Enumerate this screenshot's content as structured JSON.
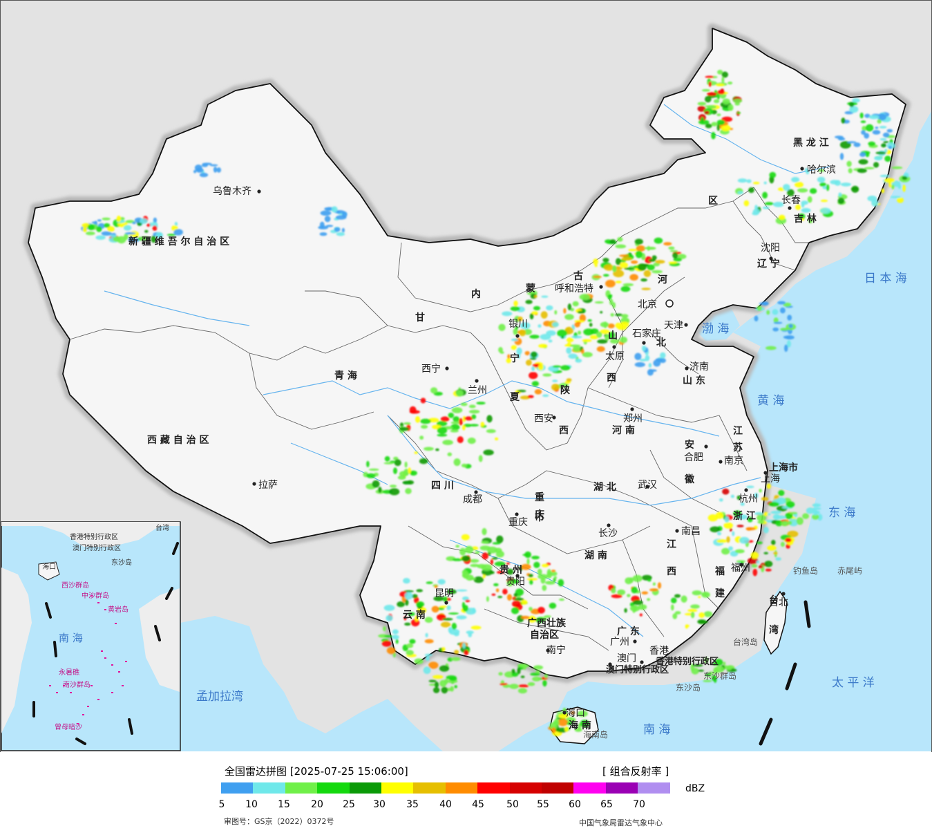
{
  "title_line": "全国雷达拼图 [2025-07-25 15:06:00]",
  "product": "[ 组合反射率 ]",
  "unit": "dBZ",
  "review_no": "审图号：GS京（2022）0372号",
  "agency": "中国气象局雷达气象中心",
  "legend": {
    "colors": [
      "#3f9ff0",
      "#6fe8ea",
      "#70f049",
      "#14d90e",
      "#0a9a07",
      "#ffff00",
      "#e6bf00",
      "#ff8c00",
      "#ff0000",
      "#d60000",
      "#c00000",
      "#ff00f0",
      "#9a00b4",
      "#b08ef0"
    ],
    "ticks": [
      "5",
      "10",
      "15",
      "20",
      "25",
      "30",
      "35",
      "40",
      "45",
      "50",
      "55",
      "60",
      "65",
      "70"
    ]
  },
  "regions": [
    {
      "text": "新 疆 维 吾 尔 自 治 区"
    },
    {
      "text": "西 藏 自 治 区"
    },
    {
      "text": "青  海"
    },
    {
      "text": "甘"
    },
    {
      "text": "内"
    },
    {
      "text": "蒙"
    },
    {
      "text": "古"
    },
    {
      "text": "区"
    },
    {
      "text": "黑 龙 江"
    },
    {
      "text": "吉 林"
    },
    {
      "text": "辽 宁"
    },
    {
      "text": "河"
    },
    {
      "text": "北"
    },
    {
      "text": "山"
    },
    {
      "text": "西"
    },
    {
      "text": "陕"
    },
    {
      "text": "西"
    },
    {
      "text": "宁"
    },
    {
      "text": "夏"
    },
    {
      "text": "河 南"
    },
    {
      "text": "山 东"
    },
    {
      "text": "江"
    },
    {
      "text": "苏"
    },
    {
      "text": "安"
    },
    {
      "text": "徽"
    },
    {
      "text": "上海市"
    },
    {
      "text": "浙 江"
    },
    {
      "text": "四  川"
    },
    {
      "text": "重"
    },
    {
      "text": "庆"
    },
    {
      "text": "市"
    },
    {
      "text": "湖  北"
    },
    {
      "text": "湖  南"
    },
    {
      "text": "江"
    },
    {
      "text": "西"
    },
    {
      "text": "福"
    },
    {
      "text": "建"
    },
    {
      "text": "贵  州"
    },
    {
      "text": "云  南"
    },
    {
      "text": "广西壮族"
    },
    {
      "text": "自治区"
    },
    {
      "text": "广  东"
    },
    {
      "text": "海  南"
    },
    {
      "text": "台"
    },
    {
      "text": "湾"
    }
  ],
  "cities": [
    {
      "text": "乌鲁木齐"
    },
    {
      "text": "拉萨"
    },
    {
      "text": "西宁"
    },
    {
      "text": "兰州"
    },
    {
      "text": "银川"
    },
    {
      "text": "呼和浩特"
    },
    {
      "text": "北京"
    },
    {
      "text": "天津"
    },
    {
      "text": "石家庄"
    },
    {
      "text": "太原"
    },
    {
      "text": "济南"
    },
    {
      "text": "郑州"
    },
    {
      "text": "西安"
    },
    {
      "text": "成都"
    },
    {
      "text": "重庆"
    },
    {
      "text": "武汉"
    },
    {
      "text": "合肥"
    },
    {
      "text": "南京"
    },
    {
      "text": "上海"
    },
    {
      "text": "杭州"
    },
    {
      "text": "南昌"
    },
    {
      "text": "长沙"
    },
    {
      "text": "贵阳"
    },
    {
      "text": "昆明"
    },
    {
      "text": "南宁"
    },
    {
      "text": "广州"
    },
    {
      "text": "福州"
    },
    {
      "text": "台北"
    },
    {
      "text": "海口"
    },
    {
      "text": "哈尔滨"
    },
    {
      "text": "长春"
    },
    {
      "text": "沈阳"
    },
    {
      "text": "香港"
    },
    {
      "text": "澳门"
    }
  ],
  "seas": [
    {
      "text": "日 本 海"
    },
    {
      "text": "渤 海"
    },
    {
      "text": "黄  海"
    },
    {
      "text": "东  海"
    },
    {
      "text": "南  海"
    },
    {
      "text": "太  平  洋"
    },
    {
      "text": "孟加拉湾"
    }
  ],
  "islands": [
    {
      "text": "钓鱼岛"
    },
    {
      "text": "赤尾屿"
    },
    {
      "text": "台湾岛"
    },
    {
      "text": "东沙群岛"
    },
    {
      "text": "东沙岛"
    },
    {
      "text": "海南岛"
    },
    {
      "text": "香港特别行政区"
    },
    {
      "text": "澳门特别行政区"
    }
  ],
  "inset": [
    {
      "text": "南  海"
    },
    {
      "text": "西沙群岛"
    },
    {
      "text": "中沙群岛"
    },
    {
      "text": "南沙群岛"
    },
    {
      "text": "黄岩岛"
    },
    {
      "text": "曾母暗沙"
    },
    {
      "text": "永暑礁"
    },
    {
      "text": "香港特别行政区"
    },
    {
      "text": "澳门特别行政区"
    },
    {
      "text": "台湾"
    },
    {
      "text": "东沙岛"
    },
    {
      "text": "海口"
    }
  ]
}
